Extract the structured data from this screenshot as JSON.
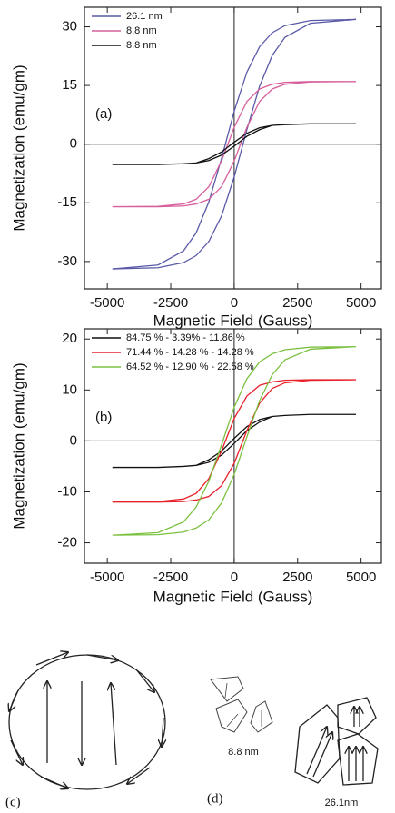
{
  "chart_data": [
    {
      "type": "line",
      "panel_label": "(a)",
      "x_label": "Magnetic Field (Gauss)",
      "y_label": "Magnetization (emu/gm)",
      "xlim": [
        -5900,
        5800
      ],
      "ylim": [
        -37,
        35
      ],
      "xticks": [
        -5000,
        -2500,
        0,
        2500,
        5000
      ],
      "yticks": [
        -30,
        -15,
        0,
        15,
        30
      ],
      "grid": false,
      "zero_lines": true,
      "legend": "top-left",
      "x": [
        -4800,
        -3000,
        -2000,
        -1500,
        -1000,
        -500,
        0,
        500,
        1000,
        1500,
        2000,
        3000,
        4800,
        4800,
        3000,
        2000,
        1500,
        1000,
        500,
        0,
        -500,
        -1000,
        -1500,
        -2000,
        -3000,
        -4800
      ],
      "series": [
        {
          "name": "26.1 nm",
          "color": "#5a5aa8",
          "values": [
            -31.9,
            -31.6,
            -30.3,
            -28.5,
            -24.9,
            -18.4,
            -8.4,
            3.7,
            14.8,
            22.7,
            27.3,
            30.9,
            31.9,
            31.9,
            31.6,
            30.3,
            28.5,
            24.9,
            18.4,
            8.4,
            -3.7,
            -14.8,
            -22.7,
            -27.3,
            -30.9,
            -31.9
          ]
        },
        {
          "name": "8.8 nm",
          "color": "#d6609c",
          "values": [
            -16.0,
            -16.0,
            -15.8,
            -15.3,
            -14.1,
            -10.9,
            -4.3,
            4.3,
            10.9,
            14.1,
            15.3,
            15.9,
            16.0,
            16.0,
            16.0,
            15.8,
            15.3,
            14.1,
            10.9,
            4.3,
            -4.3,
            -10.9,
            -14.1,
            -15.3,
            -15.9,
            -16.0
          ]
        },
        {
          "name": "8.8 nm",
          "color": "#111111",
          "values": [
            -5.2,
            -5.2,
            -5.0,
            -4.8,
            -4.2,
            -2.8,
            -0.5,
            2.0,
            3.7,
            4.8,
            5.0,
            5.2,
            5.2,
            5.2,
            5.2,
            5.0,
            4.8,
            4.2,
            2.8,
            0.5,
            -2.0,
            -3.7,
            -4.8,
            -5.0,
            -5.2,
            -5.2
          ]
        }
      ]
    },
    {
      "type": "line",
      "panel_label": "(b)",
      "x_label": "Magnetic Field (Gauss)",
      "y_label": "Magnetization (emu/gm)",
      "xlim": [
        -5900,
        5800
      ],
      "ylim": [
        -24,
        22
      ],
      "xticks": [
        -5000,
        -2500,
        0,
        2500,
        5000
      ],
      "yticks": [
        -20,
        -10,
        0,
        10,
        20
      ],
      "grid": false,
      "zero_lines": true,
      "legend": "top-left",
      "x": [
        -4800,
        -3000,
        -2000,
        -1500,
        -1000,
        -500,
        0,
        500,
        1000,
        1500,
        2000,
        3000,
        4800,
        4800,
        3000,
        2000,
        1500,
        1000,
        500,
        0,
        -500,
        -1000,
        -1500,
        -2000,
        -3000,
        -4800
      ],
      "series": [
        {
          "name": "84.75 % - 3.39% - 11.86 %",
          "color": "#111111",
          "values": [
            -5.2,
            -5.2,
            -5.0,
            -4.8,
            -4.2,
            -2.8,
            -0.5,
            2.0,
            3.7,
            4.8,
            5.0,
            5.2,
            5.2,
            5.2,
            5.2,
            5.0,
            4.8,
            4.2,
            2.8,
            0.5,
            -2.0,
            -3.7,
            -4.8,
            -5.0,
            -5.2,
            -5.2
          ]
        },
        {
          "name": "71.44 % - 14.28 % - 14.28 %",
          "color": "#e8202a",
          "values": [
            -12.0,
            -12.0,
            -11.9,
            -11.6,
            -10.9,
            -8.8,
            -4.4,
            2.0,
            7.4,
            10.3,
            11.4,
            11.9,
            12.0,
            12.0,
            12.0,
            11.9,
            11.6,
            10.9,
            8.8,
            4.4,
            -2.0,
            -7.4,
            -10.3,
            -11.4,
            -11.9,
            -12.0
          ]
        },
        {
          "name": "64.52 % - 12.90 % - 22.58 %",
          "color": "#7cc040",
          "values": [
            -18.5,
            -18.4,
            -17.9,
            -17.1,
            -15.5,
            -12.2,
            -6.6,
            0.8,
            7.9,
            13.0,
            15.9,
            18.0,
            18.5,
            18.5,
            18.4,
            17.9,
            17.1,
            15.5,
            12.2,
            6.6,
            -0.8,
            -7.9,
            -13.0,
            -15.9,
            -18.0,
            -18.5
          ]
        }
      ]
    }
  ],
  "diagram": {
    "label_c": "(c)",
    "label_d": "(d)",
    "small_grains": "8.8 nm",
    "large_grains": "26.1nm"
  }
}
